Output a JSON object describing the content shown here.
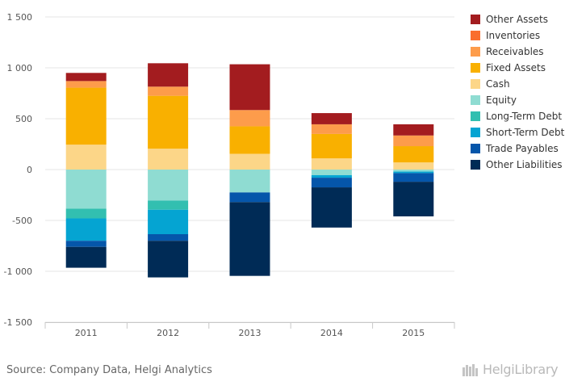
{
  "chart_data": {
    "type": "bar",
    "stacked": true,
    "categories": [
      "2011",
      "2012",
      "2013",
      "2014",
      "2015"
    ],
    "ylim": [
      -1500,
      1500
    ],
    "yticks": [
      -1500,
      -1000,
      -500,
      0,
      500,
      1000,
      1500
    ],
    "ytick_labels": [
      "-1 500",
      "-1 000",
      "-500",
      "0",
      "500",
      "1 000",
      "1 500"
    ],
    "grid": true,
    "legend_position": "right",
    "series": [
      {
        "name": "Cash",
        "color": "#fcd688",
        "values": [
          245,
          205,
          155,
          110,
          70
        ]
      },
      {
        "name": "Fixed Assets",
        "color": "#f9b000",
        "values": [
          560,
          520,
          270,
          240,
          160
        ]
      },
      {
        "name": "Receivables",
        "color": "#fd9c4b",
        "values": [
          65,
          90,
          160,
          95,
          105
        ]
      },
      {
        "name": "Inventories",
        "color": "#fa6e2d",
        "values": [
          0,
          0,
          0,
          0,
          0
        ]
      },
      {
        "name": "Other Assets",
        "color": "#a31c1f",
        "values": [
          80,
          230,
          450,
          110,
          110
        ]
      },
      {
        "name": "Equity",
        "color": "#8fdcd2",
        "values": [
          -385,
          -305,
          -225,
          -55,
          -20
        ]
      },
      {
        "name": "Long-Term Debt",
        "color": "#32bfb0",
        "values": [
          -95,
          -90,
          0,
          0,
          0
        ]
      },
      {
        "name": "Short-Term Debt",
        "color": "#05a4d2",
        "values": [
          -220,
          -240,
          0,
          -25,
          -15
        ]
      },
      {
        "name": "Trade Payables",
        "color": "#0556aa",
        "values": [
          -60,
          -65,
          -95,
          -95,
          -85
        ]
      },
      {
        "name": "Other Liabilities",
        "color": "#002b56",
        "values": [
          -205,
          -360,
          -725,
          -395,
          -340
        ]
      }
    ],
    "legend_order": [
      "Other Assets",
      "Inventories",
      "Receivables",
      "Fixed Assets",
      "Cash",
      "Equity",
      "Long-Term Debt",
      "Short-Term Debt",
      "Trade Payables",
      "Other Liabilities"
    ]
  },
  "footer": {
    "source": "Source: Company Data, Helgi Analytics",
    "brand": "HelgiLibrary"
  }
}
